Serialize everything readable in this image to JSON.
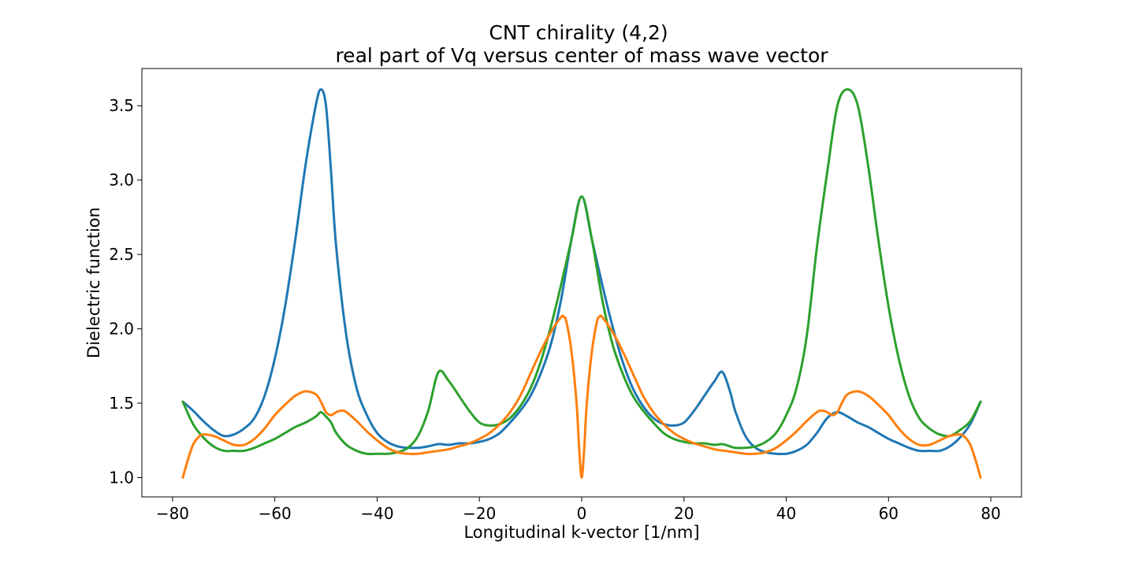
{
  "chart_data": {
    "type": "line",
    "title_line1": "CNT chirality (4,2)",
    "title_line2": "real part of Vq versus center of mass wave vector",
    "xlabel": "Longitudinal k-vector [1/nm]",
    "ylabel": "Dielectric function",
    "xlim": [
      -86,
      86
    ],
    "ylim": [
      0.87,
      3.75
    ],
    "xticks": [
      -80,
      -60,
      -40,
      -20,
      0,
      20,
      40,
      60,
      80
    ],
    "xtick_labels": [
      "−80",
      "−60",
      "−40",
      "−20",
      "0",
      "20",
      "40",
      "60",
      "80"
    ],
    "yticks": [
      1.0,
      1.5,
      2.0,
      2.5,
      3.0,
      3.5
    ],
    "ytick_labels": [
      "1.0",
      "1.5",
      "2.0",
      "2.5",
      "3.0",
      "3.5"
    ],
    "grid": false,
    "legend": "none",
    "series": [
      {
        "color": "#1f77b4",
        "x": [
          -78,
          -76,
          -74,
          -72,
          -70,
          -68,
          -66,
          -64,
          -62,
          -60,
          -58,
          -56,
          -54,
          -52,
          -51,
          -50,
          -49,
          -48,
          -46,
          -44,
          -42,
          -40,
          -38,
          -36,
          -34,
          -32,
          -30,
          -28,
          -26,
          -24,
          -22,
          -20,
          -18,
          -16,
          -14,
          -12,
          -10,
          -8,
          -6,
          -4,
          -2,
          0,
          2,
          4,
          6,
          8,
          10,
          12,
          14,
          16,
          18,
          20,
          22,
          24,
          26,
          27.5,
          29,
          30,
          32,
          34,
          36,
          38,
          40,
          42,
          44,
          46,
          48,
          50,
          52,
          54,
          56,
          58,
          60,
          62,
          64,
          66,
          68,
          70,
          72,
          74,
          76,
          78
        ],
        "y": [
          1.51,
          1.45,
          1.38,
          1.32,
          1.28,
          1.29,
          1.33,
          1.4,
          1.55,
          1.8,
          2.15,
          2.6,
          3.1,
          3.5,
          3.61,
          3.5,
          3.05,
          2.55,
          1.95,
          1.6,
          1.42,
          1.3,
          1.24,
          1.21,
          1.2,
          1.2,
          1.21,
          1.225,
          1.22,
          1.23,
          1.23,
          1.24,
          1.26,
          1.3,
          1.37,
          1.45,
          1.55,
          1.7,
          1.9,
          2.2,
          2.6,
          2.89,
          2.6,
          2.3,
          2.02,
          1.78,
          1.6,
          1.48,
          1.4,
          1.36,
          1.35,
          1.37,
          1.45,
          1.55,
          1.65,
          1.71,
          1.58,
          1.45,
          1.28,
          1.2,
          1.17,
          1.16,
          1.16,
          1.18,
          1.22,
          1.3,
          1.4,
          1.44,
          1.41,
          1.37,
          1.34,
          1.3,
          1.26,
          1.23,
          1.2,
          1.18,
          1.18,
          1.18,
          1.21,
          1.27,
          1.36,
          1.51
        ]
      },
      {
        "color": "#2ca02c",
        "x": [
          -78,
          -76,
          -74,
          -72,
          -70,
          -68,
          -66,
          -64,
          -62,
          -60,
          -58,
          -56,
          -54,
          -52,
          -51,
          -50,
          -49,
          -48,
          -46,
          -44,
          -42,
          -40,
          -38,
          -36,
          -34,
          -32,
          -30,
          -28,
          -26,
          -24,
          -22,
          -20,
          -18,
          -16,
          -14,
          -12,
          -10,
          -8,
          -6,
          -4,
          -2,
          0,
          2,
          4,
          6,
          8,
          10,
          12,
          14,
          16,
          18,
          20,
          22,
          24,
          26,
          27.5,
          29,
          30,
          32,
          34,
          36,
          38,
          40,
          42,
          44,
          46,
          48,
          50,
          52,
          54,
          56,
          58,
          60,
          62,
          64,
          66,
          68,
          70,
          72,
          74,
          76,
          78
        ],
        "y": [
          1.51,
          1.36,
          1.27,
          1.21,
          1.18,
          1.18,
          1.18,
          1.2,
          1.23,
          1.26,
          1.3,
          1.34,
          1.37,
          1.41,
          1.44,
          1.41,
          1.37,
          1.3,
          1.22,
          1.18,
          1.16,
          1.16,
          1.16,
          1.17,
          1.2,
          1.28,
          1.45,
          1.71,
          1.65,
          1.55,
          1.45,
          1.37,
          1.35,
          1.36,
          1.4,
          1.48,
          1.6,
          1.78,
          2.02,
          2.3,
          2.6,
          2.89,
          2.6,
          2.2,
          1.9,
          1.7,
          1.55,
          1.45,
          1.37,
          1.3,
          1.26,
          1.24,
          1.23,
          1.23,
          1.22,
          1.225,
          1.21,
          1.2,
          1.2,
          1.21,
          1.24,
          1.3,
          1.42,
          1.6,
          1.95,
          2.55,
          3.05,
          3.5,
          3.61,
          3.5,
          3.1,
          2.6,
          2.15,
          1.8,
          1.55,
          1.4,
          1.33,
          1.29,
          1.28,
          1.32,
          1.38,
          1.51
        ]
      },
      {
        "color": "#ff7f0e",
        "x": [
          -78,
          -77,
          -76,
          -75,
          -74,
          -72,
          -70,
          -68,
          -66,
          -64,
          -62,
          -60,
          -58,
          -56,
          -54,
          -52,
          -51,
          -50,
          -49,
          -48,
          -47,
          -46,
          -44,
          -42,
          -40,
          -38,
          -36,
          -34,
          -32,
          -30,
          -28,
          -26,
          -24,
          -22,
          -20,
          -18,
          -16,
          -14,
          -12,
          -10,
          -8,
          -6,
          -4,
          -3.5,
          -3,
          -2,
          -1,
          -0.5,
          0,
          0.5,
          1,
          2,
          3,
          3.5,
          4,
          6,
          8,
          10,
          12,
          14,
          16,
          18,
          20,
          22,
          24,
          26,
          28,
          30,
          32,
          34,
          36,
          38,
          40,
          42,
          44,
          46,
          47,
          48,
          49,
          50,
          51,
          52,
          54,
          56,
          58,
          60,
          62,
          64,
          66,
          68,
          70,
          72,
          74,
          75,
          76,
          77,
          78
        ],
        "y": [
          1.0,
          1.12,
          1.22,
          1.27,
          1.29,
          1.28,
          1.25,
          1.22,
          1.22,
          1.26,
          1.33,
          1.42,
          1.49,
          1.55,
          1.58,
          1.56,
          1.51,
          1.44,
          1.42,
          1.44,
          1.45,
          1.44,
          1.38,
          1.31,
          1.25,
          1.2,
          1.17,
          1.16,
          1.16,
          1.17,
          1.18,
          1.19,
          1.21,
          1.23,
          1.26,
          1.3,
          1.36,
          1.44,
          1.55,
          1.7,
          1.85,
          1.98,
          2.08,
          2.08,
          2.05,
          1.85,
          1.5,
          1.2,
          1.0,
          1.2,
          1.5,
          1.85,
          2.05,
          2.08,
          2.08,
          1.98,
          1.85,
          1.7,
          1.55,
          1.44,
          1.36,
          1.3,
          1.26,
          1.23,
          1.21,
          1.19,
          1.18,
          1.17,
          1.16,
          1.16,
          1.17,
          1.2,
          1.25,
          1.31,
          1.38,
          1.44,
          1.45,
          1.44,
          1.42,
          1.44,
          1.51,
          1.56,
          1.58,
          1.55,
          1.49,
          1.42,
          1.33,
          1.26,
          1.22,
          1.22,
          1.25,
          1.28,
          1.29,
          1.27,
          1.22,
          1.12,
          1.0
        ]
      }
    ]
  }
}
